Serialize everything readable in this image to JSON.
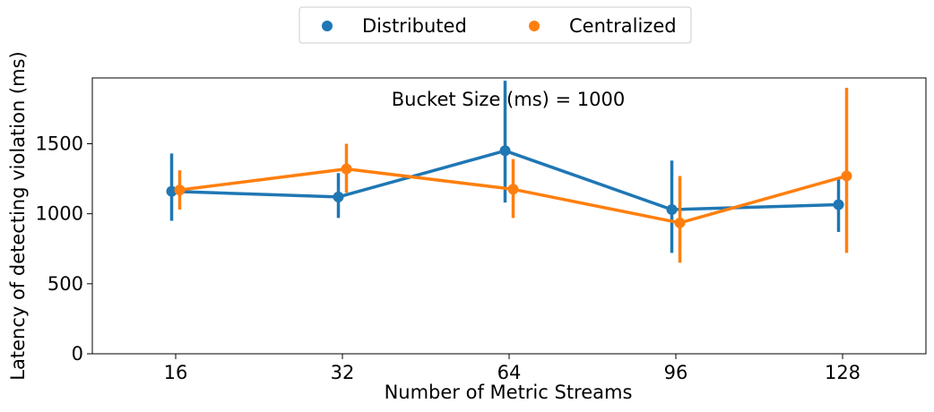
{
  "chart_data": {
    "type": "line",
    "annotation": "Bucket Size (ms) = 1000",
    "xlabel": "Number of Metric Streams",
    "ylabel": "Latency of detecting violation (ms)",
    "categories": [
      "16",
      "32",
      "64",
      "96",
      "128"
    ],
    "ylim": [
      0,
      1970
    ],
    "yticks": [
      0,
      500,
      1000,
      1500
    ],
    "grid": false,
    "legend_position": "top-center",
    "series": [
      {
        "name": "Distributed",
        "color": "#1f77b4",
        "values": [
          1160,
          1120,
          1450,
          1030,
          1065
        ],
        "err_low": [
          950,
          970,
          1080,
          720,
          870
        ],
        "err_high": [
          1430,
          1290,
          1950,
          1380,
          1250
        ]
      },
      {
        "name": "Centralized",
        "color": "#ff7f0e",
        "values": [
          1170,
          1320,
          1175,
          935,
          1270
        ],
        "err_low": [
          1030,
          1150,
          970,
          650,
          720
        ],
        "err_high": [
          1310,
          1500,
          1390,
          1270,
          1900
        ]
      }
    ]
  }
}
